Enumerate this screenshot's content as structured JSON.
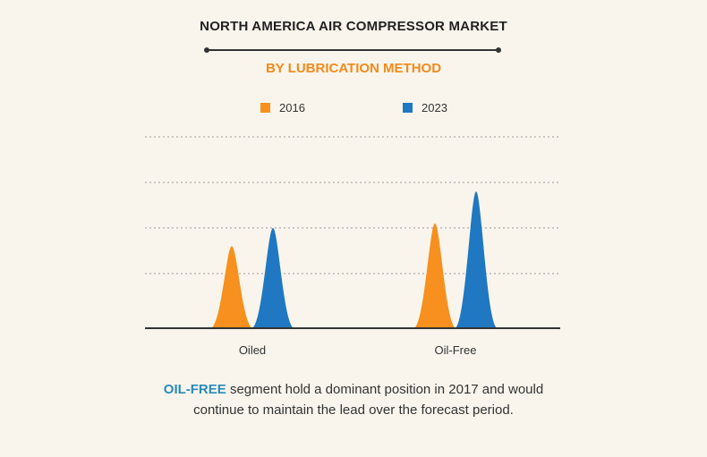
{
  "header": {
    "title": "NORTH AMERICA AIR COMPRESSOR MARKET",
    "subtitle": "BY LUBRICATION METHOD"
  },
  "colors": {
    "series_2016": "#f7901e",
    "series_2023": "#1f78c1",
    "subtitle": "#f28a1c",
    "highlight": "#2a8bb7"
  },
  "chart_data": {
    "type": "bar",
    "shape": "peak",
    "categories": [
      "Oiled",
      "Oil-Free"
    ],
    "series": [
      {
        "name": "2016",
        "color": "#f7901e",
        "values": [
          1.8,
          2.3
        ]
      },
      {
        "name": "2023",
        "color": "#1f78c1",
        "values": [
          2.2,
          3.0
        ]
      }
    ],
    "ylim": [
      0,
      4.2
    ],
    "gridlines": [
      1.2,
      2.2,
      3.2,
      4.2
    ],
    "grid": "dotted",
    "legend_position": "top-center",
    "xlabel": "",
    "ylabel": ""
  },
  "footer": {
    "highlight": "OIL-FREE",
    "line1_rest": " segment hold a dominant position in 2017 and would",
    "line2": "continue to maintain the lead over the forecast period."
  }
}
